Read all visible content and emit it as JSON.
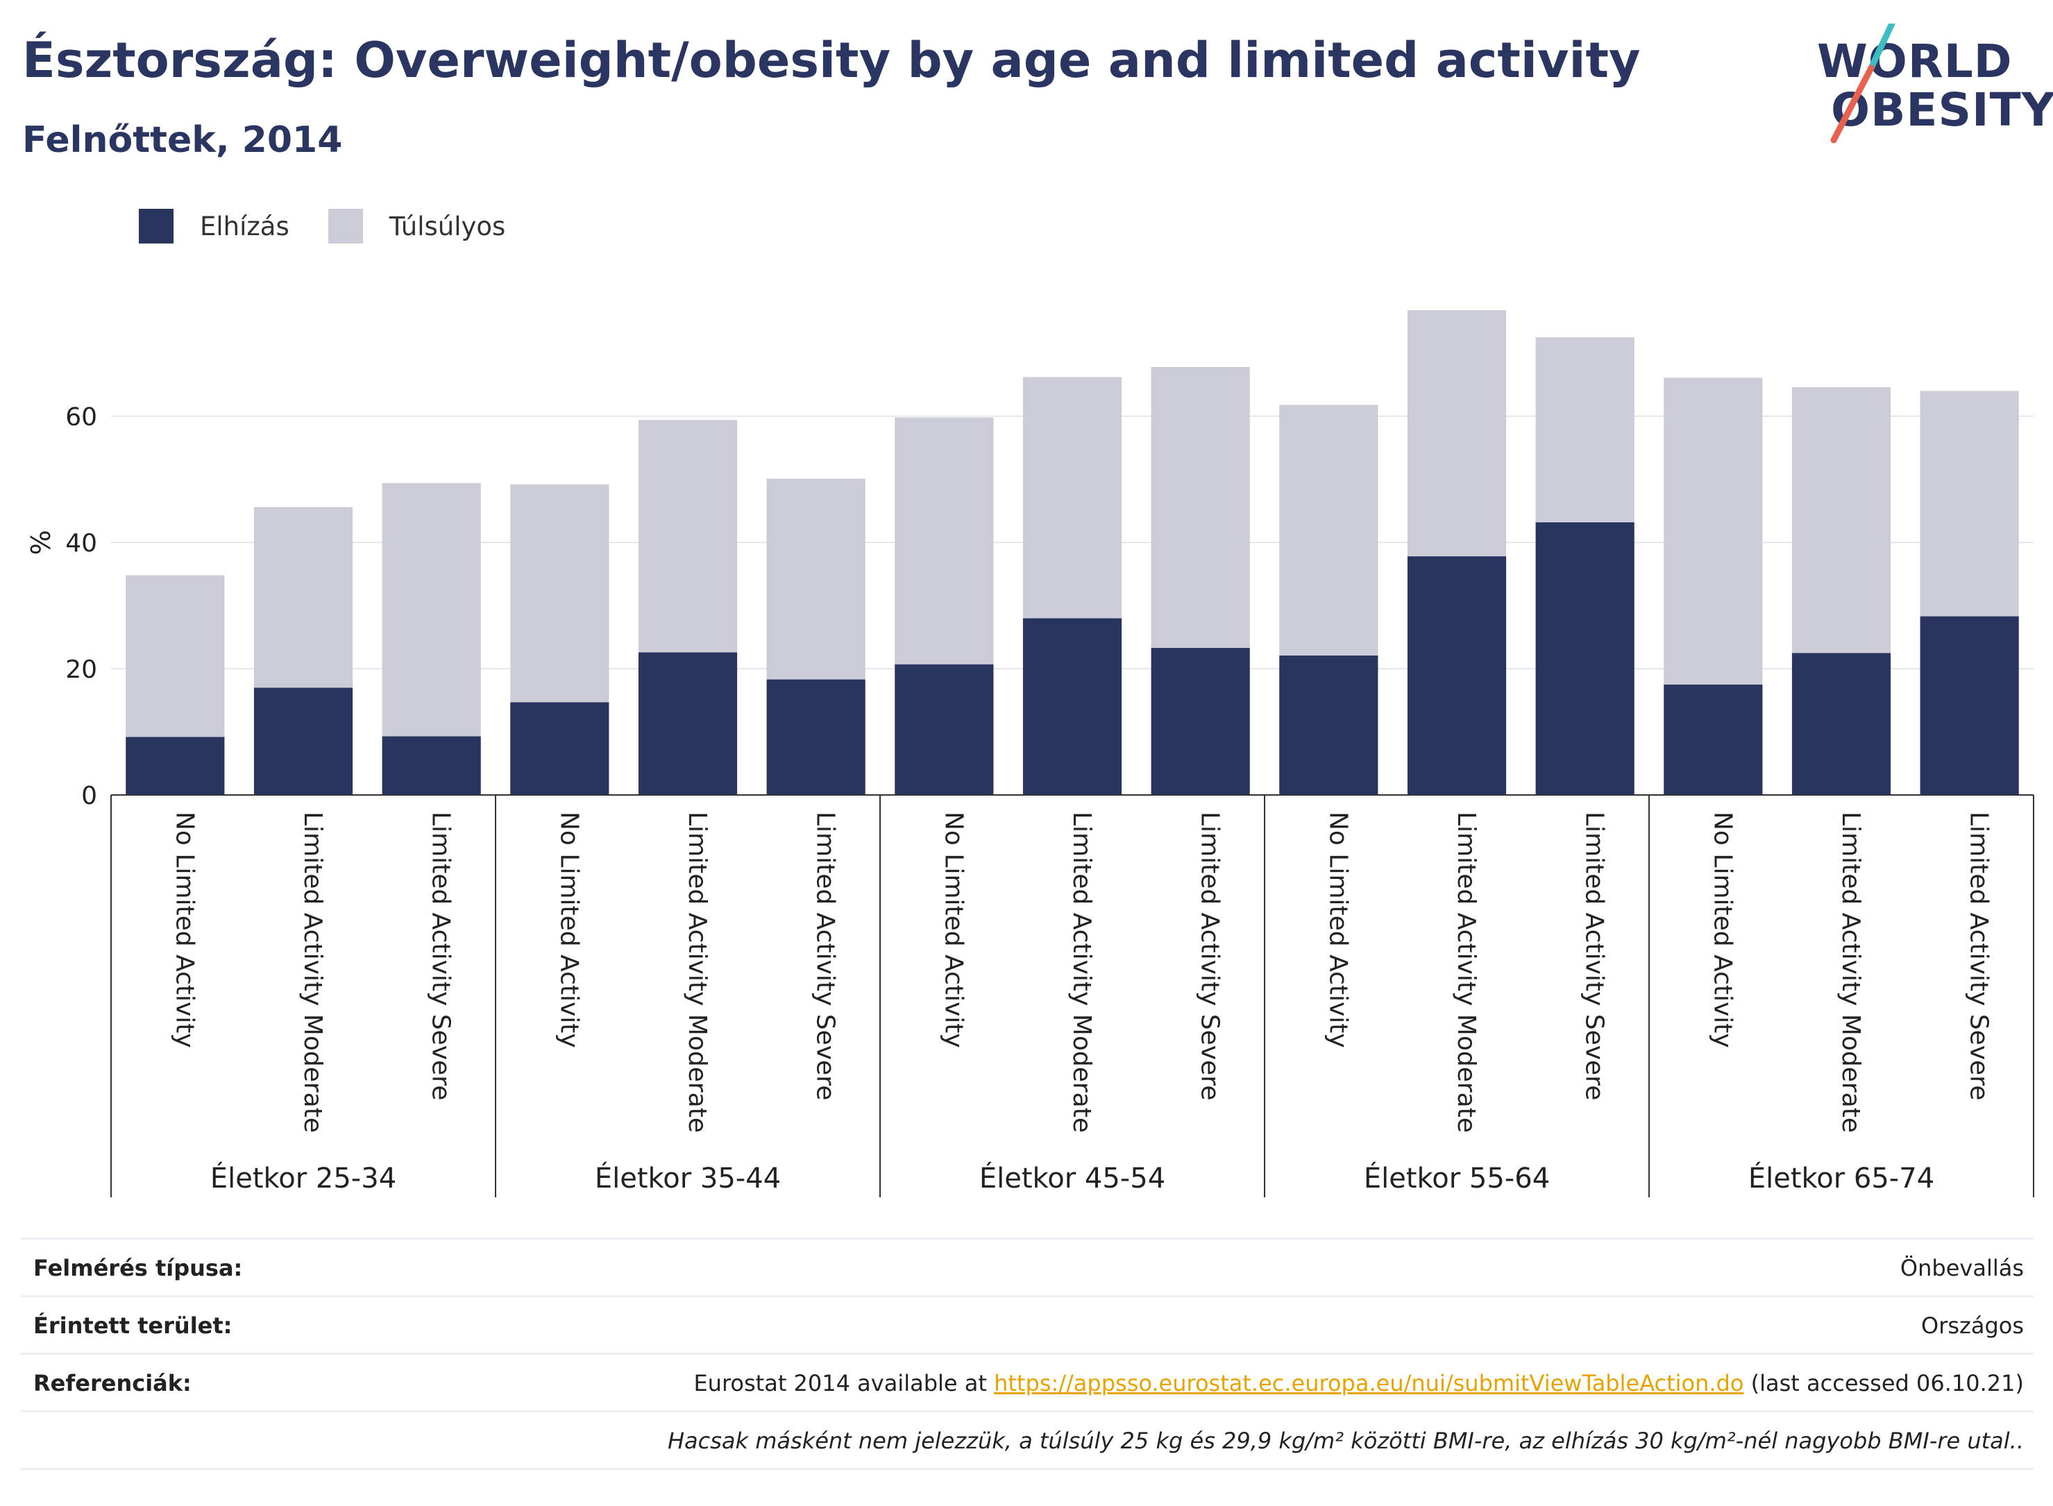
{
  "header": {
    "title": "Észtország: Overweight/obesity by age and limited activity",
    "subtitle": "Felnőttek, 2014"
  },
  "logo": {
    "line1": "WORLD",
    "line2": "OBESITY",
    "slash_colors": [
      "#3bbdc2",
      "#e8614f"
    ]
  },
  "legend": [
    {
      "label": "Elhízás",
      "color": "#29345f"
    },
    {
      "label": "Túlsúlyos",
      "color": "#cbccd8"
    }
  ],
  "chart_data": {
    "type": "bar",
    "stacked": true,
    "ylabel": "%",
    "yticks": [
      0,
      20,
      40,
      60
    ],
    "ylim": [
      0,
      78
    ],
    "grid": true,
    "categories": [
      "No Limited Activity",
      "Limited Activity Moderate",
      "Limited Activity Severe",
      "No Limited Activity",
      "Limited Activity Moderate",
      "Limited Activity Severe",
      "No Limited Activity",
      "Limited Activity Moderate",
      "Limited Activity Severe",
      "No Limited Activity",
      "Limited Activity Moderate",
      "Limited Activity Severe",
      "No Limited Activity",
      "Limited Activity Moderate",
      "Limited Activity Severe"
    ],
    "groups": [
      {
        "label": "Életkor 25-34",
        "size": 3
      },
      {
        "label": "Életkor 35-44",
        "size": 3
      },
      {
        "label": "Életkor 45-54",
        "size": 3
      },
      {
        "label": "Életkor 55-64",
        "size": 3
      },
      {
        "label": "Életkor 65-74",
        "size": 3
      }
    ],
    "series": [
      {
        "name": "Elhízás",
        "color": "#29345f",
        "values": [
          9.2,
          17.0,
          9.3,
          14.7,
          22.6,
          18.3,
          20.7,
          28.0,
          23.3,
          22.1,
          37.8,
          43.2,
          17.5,
          22.5,
          28.3
        ]
      },
      {
        "name": "Túlsúlyos",
        "color": "#cbccd8",
        "values": [
          25.6,
          28.6,
          40.1,
          34.5,
          36.8,
          31.8,
          39.1,
          38.2,
          44.5,
          39.7,
          39.0,
          29.3,
          48.6,
          42.1,
          35.7
        ]
      }
    ]
  },
  "info": {
    "survey_label": "Felmérés típusa:",
    "survey_value": "Önbevallás",
    "area_label": "Érintett terület:",
    "area_value": "Országos",
    "ref_label": "Referenciák:",
    "ref_prefix": "Eurostat 2014 available at ",
    "ref_link": "https://appsso.eurostat.ec.europa.eu/nui/submitViewTableAction.do",
    "ref_suffix": " (last accessed 06.10.21)",
    "note": "Hacsak másként nem jelezzük, a túlsúly 25 kg és 29,9 kg/m² közötti BMI-re, az elhízás 30 kg/m²-nél nagyobb BMI-re utal.."
  }
}
